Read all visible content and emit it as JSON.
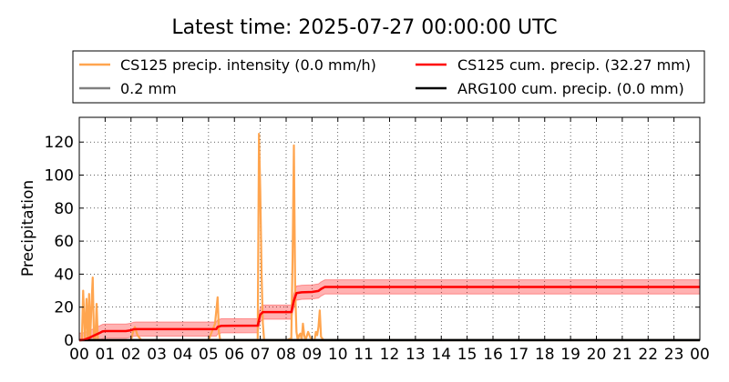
{
  "page_title": "Latest time: 2025-07-27 00:00:00 UTC",
  "chart_data": {
    "type": "line",
    "title": "Latest time: 2025-07-27 00:00:00 UTC",
    "xlabel": "",
    "ylabel": "Precipitation",
    "xlim": [
      0,
      24
    ],
    "ylim": [
      0,
      135
    ],
    "grid": true,
    "legend_placement": "top (outside plot, 2 columns)",
    "x_ticks": [
      "00",
      "01",
      "02",
      "03",
      "04",
      "05",
      "06",
      "07",
      "08",
      "09",
      "10",
      "11",
      "12",
      "13",
      "14",
      "15",
      "16",
      "17",
      "18",
      "19",
      "20",
      "21",
      "22",
      "23",
      "00"
    ],
    "y_ticks": [
      0,
      20,
      40,
      60,
      80,
      100,
      120
    ],
    "series": [
      {
        "name": "CS125 precip. intensity (0.0 mm/h)",
        "color": "#ffa54f",
        "x": [
          0.0,
          0.1,
          0.15,
          0.22,
          0.28,
          0.33,
          0.38,
          0.42,
          0.47,
          0.52,
          0.57,
          0.62,
          0.67,
          0.72,
          0.75,
          0.78,
          0.82,
          0.87,
          0.92,
          1.0,
          1.5,
          1.9,
          2.0,
          2.08,
          2.15,
          2.25,
          2.4,
          3.0,
          4.0,
          5.0,
          5.25,
          5.35,
          5.4,
          5.45,
          5.55,
          5.6,
          6.0,
          6.9,
          6.95,
          7.0,
          7.05,
          7.1,
          7.15,
          7.25,
          7.5,
          8.0,
          8.2,
          8.25,
          8.3,
          8.35,
          8.4,
          8.45,
          8.5,
          8.55,
          8.6,
          8.65,
          8.7,
          8.75,
          8.85,
          8.95,
          9.05,
          9.1,
          9.15,
          9.2,
          9.25,
          9.3,
          9.35,
          9.45,
          10.0,
          24.0
        ],
        "y": [
          0,
          0,
          30,
          0,
          25,
          0,
          28,
          0,
          20,
          38,
          0,
          0,
          22,
          0,
          0,
          0,
          0,
          0,
          0,
          0,
          0,
          0,
          0,
          5,
          8,
          3,
          0,
          0,
          0,
          0,
          10,
          26,
          5,
          0,
          0,
          0,
          0,
          0,
          125,
          90,
          40,
          10,
          0,
          0,
          0,
          0,
          1,
          50,
          118,
          30,
          5,
          0,
          3,
          4,
          0,
          10,
          3,
          0,
          5,
          1,
          0,
          0,
          5,
          3,
          8,
          18,
          2,
          0,
          0,
          0
        ]
      },
      {
        "name": "CS125 cum. precip. (32.27 mm)",
        "color": "#ff0000",
        "x": [
          0.0,
          0.2,
          0.4,
          0.6,
          0.8,
          0.9,
          1.0,
          1.8,
          2.0,
          2.1,
          2.2,
          5.3,
          5.35,
          5.5,
          6.9,
          7.0,
          7.1,
          8.2,
          8.3,
          8.4,
          8.6,
          9.0,
          9.25,
          9.35,
          9.5,
          24.0
        ],
        "y": [
          0.0,
          0.3,
          1.5,
          3.0,
          4.5,
          5.3,
          5.5,
          5.5,
          6.0,
          6.6,
          6.7,
          6.7,
          8.0,
          8.7,
          8.8,
          15.5,
          17.0,
          17.0,
          24.0,
          28.5,
          29.0,
          29.2,
          29.8,
          31.0,
          32.27,
          32.27
        ],
        "band": 4.3
      },
      {
        "name": "0.2 mm",
        "color": "#808080",
        "x": [
          0,
          24
        ],
        "y": [
          0.2,
          0.2
        ]
      },
      {
        "name": "ARG100 cum. precip. (0.0 mm)",
        "color": "#000000",
        "x": [
          0,
          24
        ],
        "y": [
          0,
          0
        ]
      }
    ]
  }
}
